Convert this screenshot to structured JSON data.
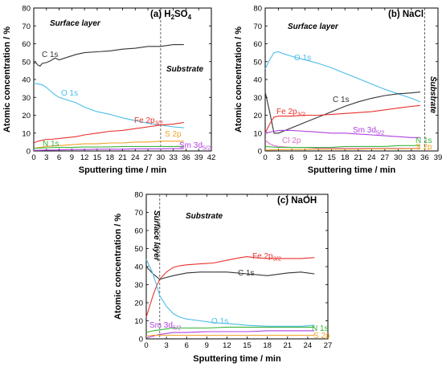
{
  "chart_data": [
    {
      "type": "line",
      "panel_label": "(a) H2SO4",
      "panel_label_parts": [
        "(a) H",
        "2",
        "SO",
        "4"
      ],
      "xlabel": "Sputtering time / min",
      "ylabel": "Atomic concentration / %",
      "xlim": [
        0,
        42
      ],
      "ylim": [
        0,
        80
      ],
      "xticks": [
        0,
        3,
        6,
        9,
        12,
        15,
        18,
        21,
        24,
        27,
        30,
        33,
        36,
        39,
        42
      ],
      "yticks": [
        0,
        10,
        20,
        30,
        40,
        50,
        60,
        70,
        80
      ],
      "divider_x": 30,
      "regions": [
        "Surface layer",
        "Substrate"
      ],
      "series": [
        {
          "name": "C 1s",
          "parts": [
            "C 1s"
          ],
          "color": "#333333",
          "x": [
            0,
            0.5,
            1,
            1.5,
            2,
            3,
            4,
            5,
            6,
            8,
            10,
            12,
            15,
            18,
            21,
            24,
            27,
            30,
            33,
            35.5
          ],
          "y": [
            49,
            49.5,
            48,
            47.5,
            49,
            49.5,
            50.5,
            52,
            51,
            52.5,
            54,
            55,
            55.5,
            56,
            57,
            57.5,
            58.5,
            58.5,
            59.5,
            59.5
          ]
        },
        {
          "name": "O 1s",
          "parts": [
            "O 1s"
          ],
          "color": "#4bbde8",
          "x": [
            0,
            1,
            2,
            3,
            4,
            5,
            6,
            8,
            10,
            12,
            15,
            18,
            21,
            24,
            27,
            30,
            33,
            35.5
          ],
          "y": [
            38,
            37.5,
            37,
            35.5,
            33.5,
            31.5,
            30,
            28.5,
            27,
            24.5,
            22,
            20.5,
            18.5,
            17,
            15.5,
            14.5,
            13.5,
            13
          ]
        },
        {
          "name": "Fe 2p3/2",
          "parts": [
            "Fe 2p",
            "3/2"
          ],
          "color": "#e8322c",
          "x": [
            0,
            1,
            2,
            3,
            4,
            6,
            8,
            10,
            12,
            15,
            18,
            21,
            24,
            27,
            30,
            33,
            35.5
          ],
          "y": [
            4.5,
            5.5,
            6,
            6.5,
            6.5,
            7,
            7.5,
            8,
            9,
            10,
            11,
            11.5,
            12.5,
            13.5,
            14.5,
            15,
            16
          ]
        },
        {
          "name": "S 2p",
          "parts": [
            "S 2p"
          ],
          "color": "#f0a22a",
          "x": [
            0,
            3,
            6,
            9,
            12,
            15,
            18,
            21,
            24,
            27,
            30,
            33,
            35.5
          ],
          "y": [
            1.5,
            2.5,
            3,
            3.5,
            4,
            4,
            4.5,
            4.5,
            5,
            5,
            5.5,
            5.5,
            5.5
          ]
        },
        {
          "name": "N 1s",
          "parts": [
            "N 1s"
          ],
          "color": "#3cb43c",
          "x": [
            0,
            3,
            6,
            9,
            12,
            15,
            18,
            21,
            24,
            27,
            30,
            33,
            35.5
          ],
          "y": [
            1.5,
            1.8,
            2,
            2,
            2.2,
            2.2,
            2.3,
            2.5,
            2.5,
            2.5,
            2.5,
            2.5,
            2.5
          ]
        },
        {
          "name": "Sm 3d5/2",
          "parts": [
            "Sm 3d",
            "5/2"
          ],
          "color": "#b040e0",
          "x": [
            0,
            3,
            6,
            9,
            12,
            15,
            18,
            21,
            24,
            27,
            30,
            33,
            35.5
          ],
          "y": [
            0.3,
            0.5,
            0.6,
            0.8,
            0.8,
            1,
            1,
            1,
            1.2,
            1.2,
            1.2,
            1.3,
            1.3
          ]
        }
      ]
    },
    {
      "type": "line",
      "panel_label": "(b) NaCl",
      "panel_label_parts": [
        "(b) NaCl"
      ],
      "xlabel": "Sputtering time / min",
      "ylabel": "Atomic concentration / %",
      "xlim": [
        0,
        39
      ],
      "ylim": [
        0,
        80
      ],
      "xticks": [
        0,
        3,
        6,
        9,
        12,
        15,
        18,
        21,
        24,
        27,
        30,
        33,
        36,
        39
      ],
      "yticks": [
        0,
        10,
        20,
        30,
        40,
        50,
        60,
        70,
        80
      ],
      "divider_x": 36,
      "regions": [
        "Surface layer",
        "Substrate"
      ],
      "series": [
        {
          "name": "O 1s",
          "parts": [
            "O 1s"
          ],
          "color": "#4bbde8",
          "x": [
            0,
            1,
            2,
            3,
            4,
            6,
            9,
            12,
            15,
            18,
            21,
            24,
            27,
            30,
            33,
            35
          ],
          "y": [
            46,
            51,
            55,
            55.5,
            54.5,
            53,
            51,
            49,
            46.5,
            43.5,
            40.5,
            37.5,
            34.5,
            32,
            29.5,
            27.5
          ]
        },
        {
          "name": "C 1s",
          "parts": [
            "C 1s"
          ],
          "color": "#333333",
          "x": [
            0,
            1,
            2,
            3,
            6,
            9,
            12,
            15,
            18,
            21,
            24,
            27,
            30,
            33,
            35
          ],
          "y": [
            33,
            22,
            10,
            10,
            13,
            16,
            19,
            22,
            25,
            27.5,
            29.5,
            31,
            32,
            32.5,
            33
          ]
        },
        {
          "name": "Fe 2p3/2",
          "parts": [
            "Fe 2p",
            "3/2"
          ],
          "color": "#e8322c",
          "x": [
            0,
            1,
            2,
            3,
            6,
            9,
            12,
            15,
            18,
            21,
            24,
            27,
            30,
            33,
            35
          ],
          "y": [
            10,
            15,
            19,
            19.5,
            19.5,
            20,
            20,
            20.5,
            21,
            21.5,
            22,
            23,
            24,
            25,
            25.5
          ]
        },
        {
          "name": "Sm 3d5/2",
          "parts": [
            "Sm 3d",
            "5/2"
          ],
          "color": "#b040e0",
          "x": [
            0,
            2,
            3,
            6,
            9,
            12,
            15,
            18,
            21,
            24,
            27,
            30,
            33,
            35
          ],
          "y": [
            10,
            11,
            11.5,
            11.5,
            11,
            10.5,
            10,
            10,
            9.5,
            9,
            8.5,
            8,
            7.5,
            7.5
          ]
        },
        {
          "name": "Cl 2p",
          "parts": [
            "Cl 2p"
          ],
          "color": "#e070d0",
          "x": [
            0,
            1,
            2,
            3,
            6,
            9,
            12,
            15,
            18,
            21,
            24,
            27,
            30,
            33,
            35
          ],
          "y": [
            6,
            4,
            3,
            2.5,
            2,
            2,
            1.5,
            1.5,
            1.5,
            1.5,
            1.5,
            1.5,
            1.5,
            1.5,
            1.5
          ]
        },
        {
          "name": "N 1s",
          "parts": [
            "N 1s"
          ],
          "color": "#3cb43c",
          "x": [
            0,
            3,
            6,
            9,
            12,
            15,
            18,
            21,
            24,
            27,
            30,
            33,
            35
          ],
          "y": [
            2.5,
            2,
            2,
            2,
            2,
            2,
            2.5,
            2.5,
            2.5,
            2.5,
            3,
            3,
            3
          ]
        },
        {
          "name": "S 2p",
          "parts": [
            "S 2p"
          ],
          "color": "#f0a22a",
          "x": [
            0,
            3,
            6,
            9,
            12,
            15,
            18,
            21,
            24,
            27,
            30,
            33,
            35
          ],
          "y": [
            0.5,
            0.7,
            0.8,
            0.8,
            1,
            1,
            1,
            1,
            1.2,
            1.2,
            1.2,
            1.3,
            1.3
          ]
        }
      ]
    },
    {
      "type": "line",
      "panel_label": "(c) NaOH",
      "panel_label_parts": [
        "(c) NaOH"
      ],
      "xlabel": "Sputtering time / min",
      "ylabel": "Atomic concentration / %",
      "xlim": [
        0,
        27
      ],
      "ylim": [
        0,
        80
      ],
      "xticks": [
        0,
        3,
        6,
        9,
        12,
        15,
        18,
        21,
        24,
        27
      ],
      "yticks": [
        0,
        10,
        20,
        30,
        40,
        50,
        60,
        70,
        80
      ],
      "divider_x": 2,
      "regions": [
        "Surface layer",
        "Substrate"
      ],
      "series": [
        {
          "name": "Fe 2p3/2",
          "parts": [
            "Fe 2p",
            "3/2"
          ],
          "color": "#e8322c",
          "x": [
            0,
            0.5,
            1,
            1.5,
            2,
            3,
            4,
            5,
            6,
            8,
            10,
            12,
            14,
            15,
            16,
            18,
            21,
            23,
            25
          ],
          "y": [
            12,
            18,
            24,
            29,
            33,
            37,
            39.5,
            40.5,
            41,
            41.5,
            42,
            43.5,
            45,
            45.5,
            45,
            44.5,
            44.5,
            44.5,
            45
          ]
        },
        {
          "name": "C 1s",
          "parts": [
            "C 1s"
          ],
          "color": "#333333",
          "x": [
            0,
            0.5,
            1,
            2,
            3,
            4,
            6,
            8,
            10,
            12,
            15,
            18,
            21,
            23,
            25
          ],
          "y": [
            40,
            38,
            36,
            33,
            34,
            35,
            36.5,
            37,
            37,
            37,
            36,
            35,
            36.5,
            37,
            36
          ]
        },
        {
          "name": "O 1s",
          "parts": [
            "O 1s"
          ],
          "color": "#4bbde8",
          "x": [
            0,
            0.5,
            1,
            1.5,
            2,
            3,
            4,
            5,
            6,
            8,
            10,
            12,
            15,
            18,
            21,
            23,
            25
          ],
          "y": [
            44,
            40,
            36,
            30,
            24,
            18,
            14,
            12,
            11,
            10,
            9,
            8.5,
            7.5,
            7,
            7,
            7,
            7.5
          ]
        },
        {
          "name": "Sm 3d5/2",
          "parts": [
            "Sm 3d",
            "5/2"
          ],
          "color": "#b040e0",
          "x": [
            0,
            1,
            2,
            3,
            4,
            6,
            9,
            12,
            15,
            18,
            21,
            25
          ],
          "y": [
            0.5,
            1.5,
            2.5,
            3,
            3.5,
            3.5,
            4,
            4,
            4,
            4.5,
            4.5,
            4.5
          ]
        },
        {
          "name": "N 1s",
          "parts": [
            "N 1s"
          ],
          "color": "#3cb43c",
          "x": [
            0,
            1,
            2,
            3,
            4,
            6,
            9,
            12,
            15,
            18,
            21,
            25
          ],
          "y": [
            3.5,
            4.5,
            5,
            5.5,
            6,
            6,
            6,
            6.5,
            6.5,
            6.5,
            6.5,
            6.5
          ]
        },
        {
          "name": "S 2p",
          "parts": [
            "S 2p"
          ],
          "color": "#f0a22a",
          "x": [
            0,
            1,
            2,
            3,
            6,
            9,
            12,
            15,
            18,
            21,
            25
          ],
          "y": [
            1.5,
            2,
            2,
            2,
            2,
            2,
            2,
            2,
            2,
            2,
            2
          ]
        }
      ]
    }
  ]
}
